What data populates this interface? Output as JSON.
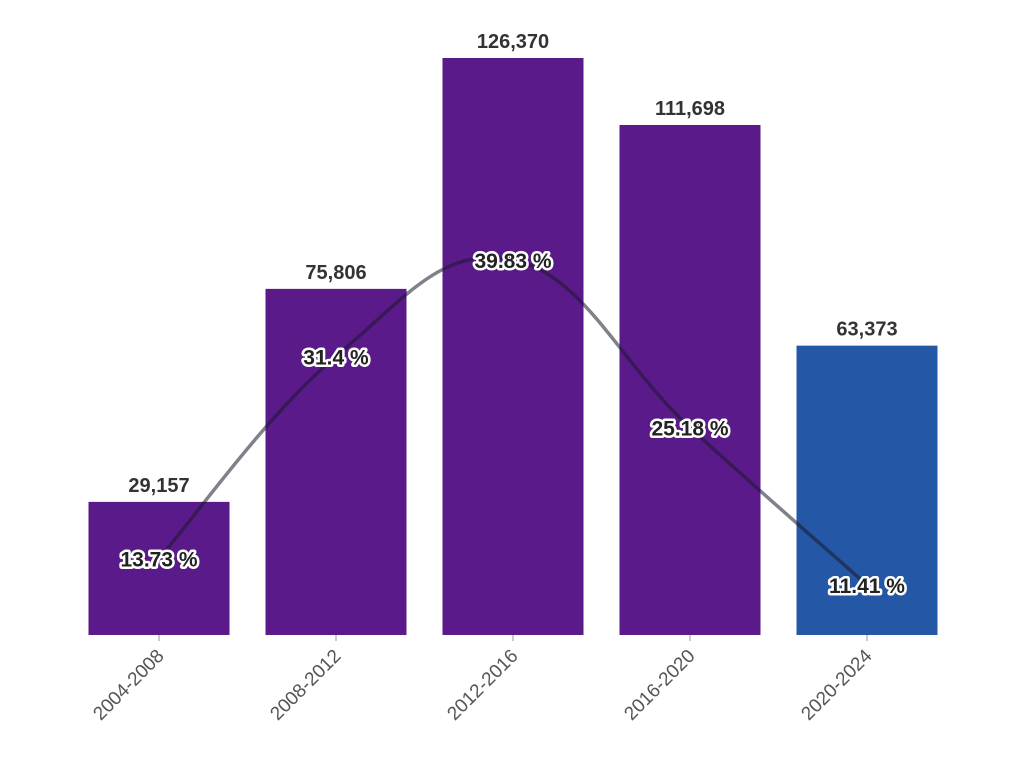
{
  "chart_data": {
    "type": "bar",
    "title": "",
    "xlabel": "",
    "ylabel": "",
    "categories": [
      "2004-2008",
      "2008-2012",
      "2012-2016",
      "2016-2020",
      "2020-2024"
    ],
    "values": [
      29157,
      75806,
      126370,
      111698,
      63373
    ],
    "value_labels": [
      "29,157",
      "75,806",
      "126,370",
      "111,698",
      "63,373"
    ],
    "ylim": [
      0,
      130000
    ],
    "grid": false,
    "legend": "none",
    "bar_colors": [
      "#5b1a8a",
      "#5b1a8a",
      "#5b1a8a",
      "#5b1a8a",
      "#2457a6"
    ],
    "line_series": {
      "type": "line",
      "smooth": true,
      "color": "#1a1a2e",
      "values": [
        13.73,
        31.4,
        39.83,
        25.18,
        11.41
      ],
      "labels": [
        "13.73 %",
        "31.4 %",
        "39.83 %",
        "25.18 %",
        "11.41 %"
      ],
      "ylim": [
        0,
        45
      ]
    }
  }
}
